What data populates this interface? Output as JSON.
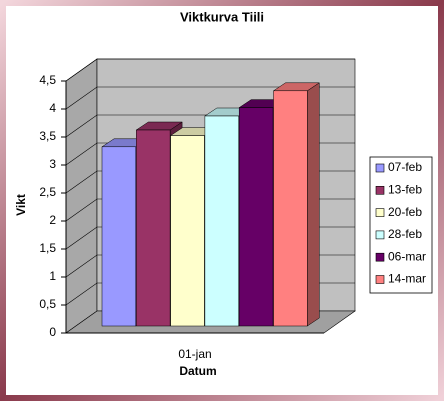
{
  "chart_data": {
    "type": "bar",
    "title": "Viktkurva Tiili",
    "x_label": "Datum",
    "y_label": "Vikt",
    "categories": [
      "01-jan"
    ],
    "series": [
      {
        "name": "07-feb",
        "color": "#9999ff",
        "values": [
          3.2
        ]
      },
      {
        "name": "13-feb",
        "color": "#993366",
        "values": [
          3.5
        ]
      },
      {
        "name": "20-feb",
        "color": "#ffffcc",
        "values": [
          3.4
        ]
      },
      {
        "name": "28-feb",
        "color": "#ccffff",
        "values": [
          3.75
        ]
      },
      {
        "name": "06-mar",
        "color": "#660066",
        "values": [
          3.9
        ]
      },
      {
        "name": "14-mar",
        "color": "#ff8080",
        "values": [
          4.2
        ]
      }
    ],
    "ylim": [
      0,
      4.5
    ],
    "yticks": [
      0,
      {
        "value": 0.5,
        "label": "0,5"
      },
      1,
      {
        "value": 1.5,
        "label": "1,5"
      },
      2,
      {
        "value": 2.5,
        "label": "2,5"
      },
      3,
      {
        "value": 3.5,
        "label": "3,5"
      },
      4,
      {
        "value": 4.5,
        "label": "4,5"
      }
    ],
    "grid": true,
    "legend": "right"
  }
}
